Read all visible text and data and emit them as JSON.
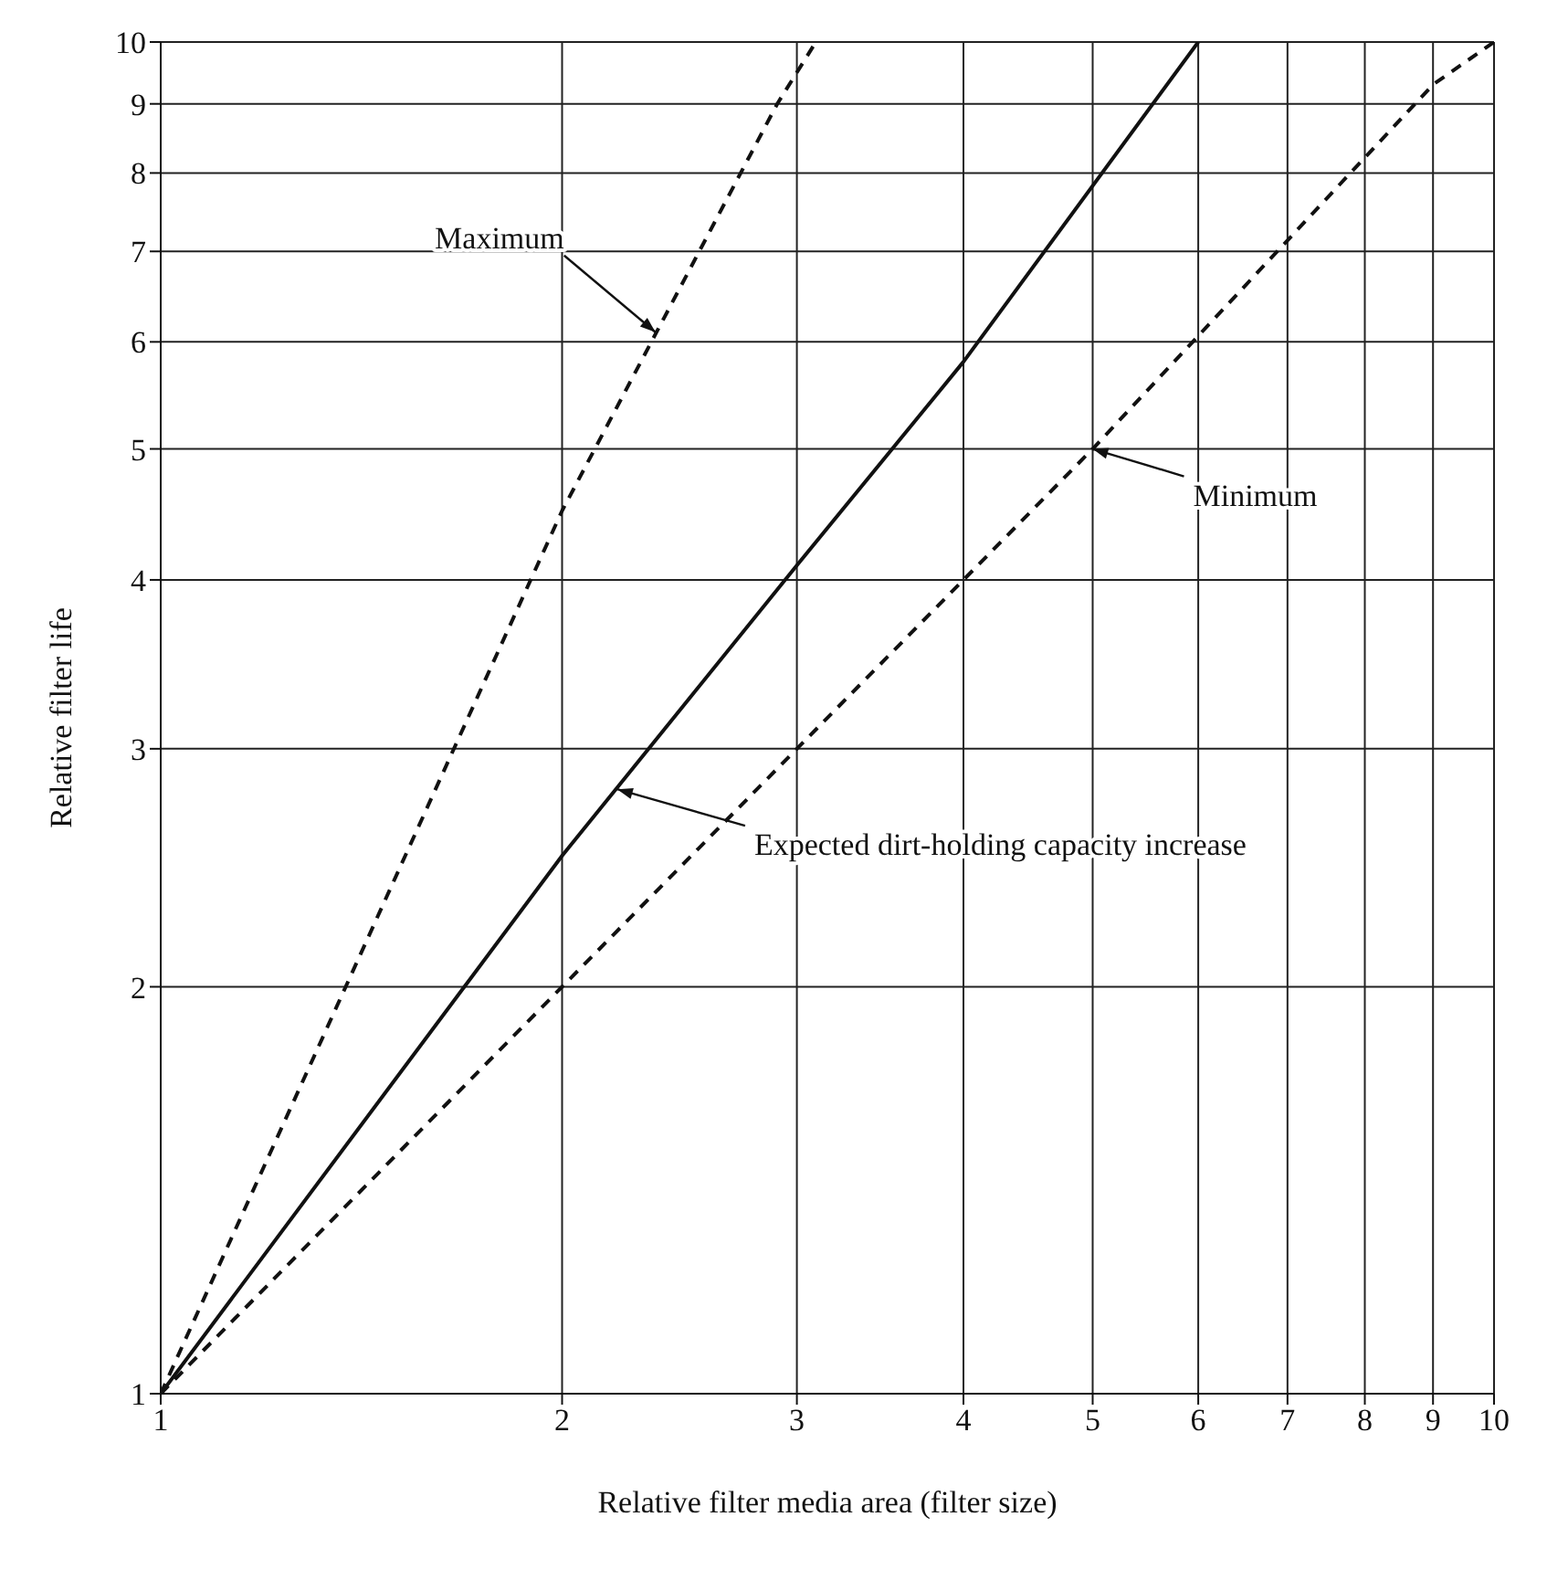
{
  "chart_data": {
    "type": "line",
    "xlabel": "Relative filter media area (filter size)",
    "ylabel": "Relative filter life",
    "log": "xy",
    "grid": true,
    "marker": "none",
    "xlim": [
      1,
      10
    ],
    "ylim": [
      1,
      10
    ],
    "xticks": [
      1,
      2,
      3,
      4,
      5,
      6,
      7,
      8,
      9,
      10
    ],
    "yticks": [
      1,
      2,
      3,
      4,
      5,
      6,
      7,
      8,
      9,
      10
    ],
    "series": [
      {
        "color": "#111111",
        "line_style": "dashed",
        "x": [
          1,
          2,
          2.9,
          3.1
        ],
        "values": [
          1,
          4.5,
          9,
          10
        ]
      },
      {
        "color": "#111111",
        "line_style": "solid",
        "x": [
          1,
          2,
          3,
          4,
          6
        ],
        "values": [
          1,
          2.5,
          4.1,
          5.8,
          10
        ]
      },
      {
        "color": "#111111",
        "line_style": "dashed",
        "x": [
          1,
          2,
          3,
          5,
          9,
          10
        ],
        "values": [
          1,
          2,
          3,
          5,
          9.3,
          10
        ]
      }
    ],
    "annotations": [
      {
        "text": "Maximum",
        "x": 2.35,
        "y": 6.1
      },
      {
        "text": "Minimum",
        "x": 5,
        "y": 5
      },
      {
        "text": "Expected dirt-holding capacity increase",
        "x": 2.2,
        "y": 2.8
      }
    ]
  }
}
